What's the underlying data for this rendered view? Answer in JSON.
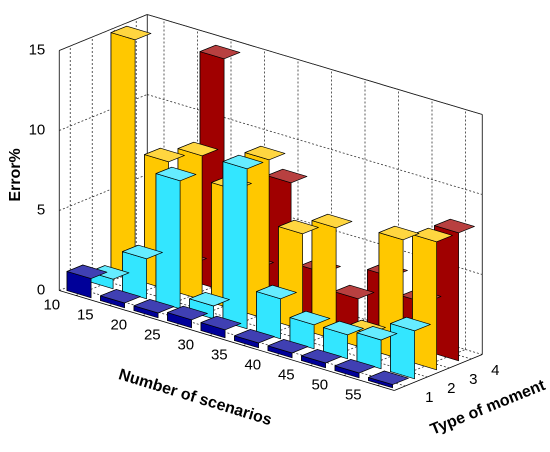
{
  "chart_data": {
    "type": "bar3d",
    "xlabel": "Number of scenarios",
    "ylabel": "Type of moment",
    "zlabel": "Error%",
    "categories": [
      "10",
      "15",
      "20",
      "25",
      "30",
      "35",
      "40",
      "45",
      "50",
      "55"
    ],
    "series": [
      {
        "name": "1",
        "color": "#000099",
        "values": [
          1.2,
          0.3,
          0.3,
          0.5,
          0.5,
          0.3,
          0.3,
          0.3,
          0.3,
          0.2
        ]
      },
      {
        "name": "2",
        "color": "#33e6ff",
        "values": [
          0.6,
          2.5,
          8,
          0.8,
          10,
          2.5,
          1.5,
          1.5,
          1.8,
          3
        ]
      },
      {
        "name": "3",
        "color": "#ffc800",
        "values": [
          15,
          8,
          9,
          7.5,
          10,
          6,
          7,
          1,
          7.5,
          8
        ]
      },
      {
        "name": "4",
        "color": "#a00000",
        "values": [
          0.5,
          1,
          14.5,
          2,
          8,
          3,
          2,
          4,
          3,
          8
        ]
      }
    ],
    "zlim": [
      0,
      15
    ],
    "zticks": [
      0,
      5,
      10,
      15
    ],
    "grid": true
  }
}
